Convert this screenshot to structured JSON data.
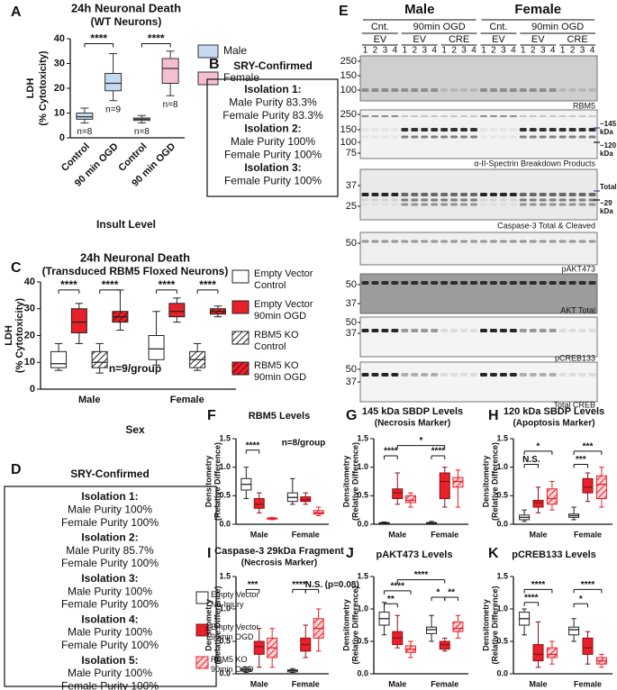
{
  "chart_data": [
    {
      "type": "box",
      "letter": "A",
      "title": "24h Neuronal Death",
      "subtitle": "(WT Neurons)",
      "ylabel": [
        "LDH",
        "(% Cytotoxicity)"
      ],
      "xlabel": "Insult Level",
      "categories": [
        "Control",
        "90 min OGD",
        "Control",
        "90 min OGD"
      ],
      "series": [
        {
          "name": "Male",
          "color": "#c6d9ef",
          "edge": "#333333",
          "boxes": [
            {
              "min": 6,
              "q1": 7.5,
              "median": 8.5,
              "q3": 10,
              "max": 12
            },
            {
              "min": 15,
              "q1": 19,
              "median": 22,
              "q3": 26,
              "max": 34
            },
            null,
            null
          ]
        },
        {
          "name": "Female",
          "color": "#f6bfd0",
          "edge": "#333333",
          "boxes": [
            null,
            null,
            {
              "min": 6,
              "q1": 7,
              "median": 7.5,
              "q3": 8,
              "max": 9
            },
            {
              "min": 17,
              "q1": 22,
              "median": 28,
              "q3": 32,
              "max": 35
            }
          ]
        }
      ],
      "box_labels": [
        "n=8",
        "n=9",
        "n=8",
        "n=8"
      ],
      "annotations": [
        "****",
        "****"
      ],
      "ylim": [
        0,
        40
      ],
      "yticks": [
        0,
        10,
        20,
        30,
        40
      ]
    },
    {
      "type": "box",
      "letter": "C",
      "title": "24h Neuronal Death",
      "subtitle": "(Transduced RBM5 Floxed Neurons)",
      "ylabel": [
        "LDH",
        "(% Cytotoxicity)"
      ],
      "xlabel": "Sex",
      "categories": [
        "Male",
        "Female"
      ],
      "category_colors": [
        "#2e6db4",
        "#e0457b"
      ],
      "series": [
        {
          "name": "Empty Vector Control",
          "color": "#ffffff",
          "edge": "#222222",
          "boxes": [
            {
              "min": 7,
              "q1": 8,
              "median": 9.5,
              "q3": 14,
              "max": 17
            },
            {
              "min": 9,
              "q1": 11,
              "median": 15,
              "q3": 20,
              "max": 29
            }
          ]
        },
        {
          "name": "Empty Vector 90min OGD",
          "color": "#e8202a",
          "edge": "#222222",
          "boxes": [
            {
              "min": 17,
              "q1": 21,
              "median": 25,
              "q3": 30,
              "max": 32
            },
            {
              "min": 25,
              "q1": 27,
              "median": 29,
              "q3": 32,
              "max": 34
            }
          ]
        },
        {
          "name": "RBM5 KO Control",
          "color": "#ffffff",
          "hatch": "#222222",
          "edge": "#222222",
          "boxes": [
            {
              "min": 6,
              "q1": 8,
              "median": 10,
              "q3": 14,
              "max": 17
            },
            {
              "min": 7,
              "q1": 8,
              "median": 11,
              "q3": 14,
              "max": 17
            }
          ]
        },
        {
          "name": "RBM5 KO 90min OGD",
          "color": "#e8202a",
          "hatch": "#6a0000",
          "edge": "#222222",
          "boxes": [
            {
              "min": 22,
              "q1": 25,
              "median": 27,
              "q3": 29,
              "max": 37
            },
            {
              "min": 27,
              "q1": 28,
              "median": 29,
              "q3": 30,
              "max": 31
            }
          ]
        }
      ],
      "annotations": [
        "****",
        "****",
        "****",
        "****"
      ],
      "note": "n=9/group",
      "ylim": [
        0,
        40
      ],
      "yticks": [
        0,
        10,
        20,
        30,
        40
      ]
    },
    {
      "type": "box",
      "letter": "F",
      "title": "RBM5 Levels",
      "ylabel": [
        "Densitometry",
        "(Relative Difference)"
      ],
      "categories": [
        "Male",
        "Female"
      ],
      "category_colors": [
        "#2e6db4",
        "#e0457b"
      ],
      "series": [
        {
          "name": "Empty Vector No-Injury",
          "color": "#ffffff",
          "edge": "#222222",
          "boxes": [
            {
              "min": 0.45,
              "q1": 0.6,
              "median": 0.7,
              "q3": 0.8,
              "max": 1.0
            },
            {
              "min": 0.35,
              "q1": 0.4,
              "median": 0.47,
              "q3": 0.55,
              "max": 0.8
            }
          ]
        },
        {
          "name": "Empty Vector 90min OGD",
          "color": "#e8202a",
          "edge": "#8a1015",
          "boxes": [
            {
              "min": 0.2,
              "q1": 0.28,
              "median": 0.35,
              "q3": 0.45,
              "max": 0.55
            },
            {
              "min": 0.35,
              "q1": 0.4,
              "median": 0.43,
              "q3": 0.48,
              "max": 0.55
            }
          ]
        },
        {
          "name": "RBM5 KO 90min OGD",
          "color": "#fbd3d5",
          "hatch": "#e8202a",
          "edge": "#e8202a",
          "boxes": [
            {
              "min": 0.08,
              "q1": 0.09,
              "median": 0.1,
              "q3": 0.11,
              "max": 0.12
            },
            {
              "min": 0.15,
              "q1": 0.18,
              "median": 0.2,
              "q3": 0.24,
              "max": 0.3
            }
          ]
        }
      ],
      "annotations": [
        "****"
      ],
      "note": "n=8/group",
      "ylim": [
        0,
        1.5
      ],
      "yticks": [
        {
          "value": 0,
          "label": "0.0"
        },
        0.5,
        {
          "value": 1,
          "label": "1.0"
        },
        1.5
      ]
    },
    {
      "type": "box",
      "letter": "G",
      "title": "145 kDa SBDP Levels",
      "subtitle": "(Necrosis Marker)",
      "ylabel": [
        "Densitometry",
        "(Relative Difference)"
      ],
      "categories": [
        "Male",
        "Female"
      ],
      "category_colors": [
        "#2e6db4",
        "#e0457b"
      ],
      "series": [
        {
          "color": "#ffffff",
          "edge": "#222222",
          "boxes": [
            {
              "min": 0,
              "q1": 0.01,
              "median": 0.02,
              "q3": 0.03,
              "max": 0.04
            },
            {
              "min": 0,
              "q1": 0.01,
              "median": 0.02,
              "q3": 0.03,
              "max": 0.05
            }
          ]
        },
        {
          "color": "#e8202a",
          "edge": "#8a1015",
          "boxes": [
            {
              "min": 0.35,
              "q1": 0.45,
              "median": 0.55,
              "q3": 0.62,
              "max": 0.9
            },
            {
              "min": 0.3,
              "q1": 0.45,
              "median": 0.75,
              "q3": 0.9,
              "max": 1.0
            }
          ]
        },
        {
          "color": "#fbd3d5",
          "hatch": "#e8202a",
          "edge": "#e8202a",
          "boxes": [
            {
              "min": 0.3,
              "q1": 0.38,
              "median": 0.42,
              "q3": 0.5,
              "max": 0.55
            },
            {
              "min": 0.3,
              "q1": 0.65,
              "median": 0.75,
              "q3": 0.82,
              "max": 0.95
            }
          ]
        }
      ],
      "annotations": [
        "****",
        "****",
        "*"
      ],
      "ylim": [
        0,
        1.5
      ],
      "yticks": [
        {
          "value": 0,
          "label": "0.0"
        },
        0.5,
        {
          "value": 1,
          "label": "1.0"
        },
        1.5
      ]
    },
    {
      "type": "box",
      "letter": "H",
      "title": "120 kDa SBDP Levels",
      "subtitle": "(Apoptosis Marker)",
      "ylabel": [
        "Densitometry",
        "(Relative Difference)"
      ],
      "categories": [
        "Male",
        "Female"
      ],
      "category_colors": [
        "#2e6db4",
        "#e0457b"
      ],
      "series": [
        {
          "color": "#ffffff",
          "edge": "#222222",
          "boxes": [
            {
              "min": 0.05,
              "q1": 0.08,
              "median": 0.12,
              "q3": 0.16,
              "max": 0.25
            },
            {
              "min": 0.08,
              "q1": 0.12,
              "median": 0.15,
              "q3": 0.18,
              "max": 0.3
            }
          ]
        },
        {
          "color": "#e8202a",
          "edge": "#8a1015",
          "boxes": [
            {
              "min": 0.2,
              "q1": 0.3,
              "median": 0.38,
              "q3": 0.42,
              "max": 0.65
            },
            {
              "min": 0.4,
              "q1": 0.55,
              "median": 0.65,
              "q3": 0.8,
              "max": 0.9
            }
          ]
        },
        {
          "color": "#fbd3d5",
          "hatch": "#e8202a",
          "edge": "#e8202a",
          "boxes": [
            {
              "min": 0.25,
              "q1": 0.35,
              "median": 0.45,
              "q3": 0.62,
              "max": 0.75
            },
            {
              "min": 0.3,
              "q1": 0.45,
              "median": 0.7,
              "q3": 0.85,
              "max": 1.0
            }
          ]
        }
      ],
      "annotations": [
        "*",
        "N.S.",
        "***",
        "***"
      ],
      "ylim": [
        0,
        1.5
      ],
      "yticks": [
        {
          "value": 0,
          "label": "0.0"
        },
        0.5,
        {
          "value": 1,
          "label": "1.0"
        },
        1.5
      ]
    },
    {
      "type": "box",
      "letter": "I",
      "title": "Caspase-3 29kDa Fragment",
      "subtitle": "(Necrosis Marker)",
      "ylabel": [
        "Densitometry",
        "(Relative Difference)"
      ],
      "categories": [
        "Male",
        "Female"
      ],
      "category_colors": [
        "#2e6db4",
        "#e0457b"
      ],
      "series": [
        {
          "color": "#ffffff",
          "edge": "#222222",
          "boxes": [
            {
              "min": 0.02,
              "q1": 0.04,
              "median": 0.06,
              "q3": 0.08,
              "max": 0.1
            },
            {
              "min": 0.02,
              "q1": 0.03,
              "median": 0.05,
              "q3": 0.06,
              "max": 0.08
            }
          ]
        },
        {
          "color": "#e8202a",
          "edge": "#8a1015",
          "boxes": [
            {
              "min": 0.1,
              "q1": 0.3,
              "median": 0.42,
              "q3": 0.5,
              "max": 0.7
            },
            {
              "min": 0.25,
              "q1": 0.35,
              "median": 0.45,
              "q3": 0.55,
              "max": 0.75
            }
          ]
        },
        {
          "color": "#fbd3d5",
          "hatch": "#e8202a",
          "edge": "#e8202a",
          "boxes": [
            {
              "min": 0.1,
              "q1": 0.25,
              "median": 0.4,
              "q3": 0.55,
              "max": 0.7
            },
            {
              "min": 0.35,
              "q1": 0.55,
              "median": 0.7,
              "q3": 0.85,
              "max": 1.0
            }
          ]
        }
      ],
      "annotations": [
        "***",
        "****",
        "N.S.",
        "(p=0.08)"
      ],
      "ylim": [
        0,
        1.5
      ],
      "yticks": [
        {
          "value": 0,
          "label": "0.0"
        },
        0.5,
        {
          "value": 1,
          "label": "1.0"
        },
        1.5
      ]
    },
    {
      "type": "box",
      "letter": "J",
      "title": "pAKT473 Levels",
      "ylabel": [
        "Densitometry",
        "(Relative Difference)"
      ],
      "categories": [
        "Male",
        "Female"
      ],
      "category_colors": [
        "#2e6db4",
        "#e0457b"
      ],
      "series": [
        {
          "color": "#ffffff",
          "edge": "#222222",
          "boxes": [
            {
              "min": 0.6,
              "q1": 0.75,
              "median": 0.85,
              "q3": 0.95,
              "max": 1.1
            },
            {
              "min": 0.5,
              "q1": 0.62,
              "median": 0.68,
              "q3": 0.72,
              "max": 0.9
            }
          ]
        },
        {
          "color": "#e8202a",
          "edge": "#8a1015",
          "boxes": [
            {
              "min": 0.4,
              "q1": 0.45,
              "median": 0.55,
              "q3": 0.65,
              "max": 0.9
            },
            {
              "min": 0.35,
              "q1": 0.38,
              "median": 0.45,
              "q3": 0.5,
              "max": 0.55
            }
          ]
        },
        {
          "color": "#fbd3d5",
          "hatch": "#e8202a",
          "edge": "#e8202a",
          "boxes": [
            {
              "min": 0.25,
              "q1": 0.33,
              "median": 0.38,
              "q3": 0.43,
              "max": 0.5
            },
            {
              "min": 0.55,
              "q1": 0.65,
              "median": 0.7,
              "q3": 0.8,
              "max": 0.9
            }
          ]
        }
      ],
      "annotations": [
        "****",
        "**",
        "****",
        "*",
        "**"
      ],
      "ylim": [
        0,
        1.5
      ],
      "yticks": [
        {
          "value": 0,
          "label": "0.0"
        },
        0.5,
        {
          "value": 1,
          "label": "1.0"
        },
        1.5
      ]
    },
    {
      "type": "box",
      "letter": "K",
      "title": "pCREB133 Levels",
      "ylabel": [
        "Densitometry",
        "(Relative Difference)"
      ],
      "categories": [
        "Male",
        "Female"
      ],
      "category_colors": [
        "#2e6db4",
        "#e0457b"
      ],
      "series": [
        {
          "color": "#ffffff",
          "edge": "#222222",
          "boxes": [
            {
              "min": 0.6,
              "q1": 0.75,
              "median": 0.85,
              "q3": 0.95,
              "max": 1.0
            },
            {
              "min": 0.5,
              "q1": 0.6,
              "median": 0.68,
              "q3": 0.72,
              "max": 0.85
            }
          ]
        },
        {
          "color": "#e8202a",
          "edge": "#8a1015",
          "boxes": [
            {
              "min": 0.1,
              "q1": 0.2,
              "median": 0.3,
              "q3": 0.45,
              "max": 0.8
            },
            {
              "min": 0.15,
              "q1": 0.3,
              "median": 0.4,
              "q3": 0.55,
              "max": 0.65
            }
          ]
        },
        {
          "color": "#fbd3d5",
          "hatch": "#e8202a",
          "edge": "#e8202a",
          "boxes": [
            {
              "min": 0.15,
              "q1": 0.25,
              "median": 0.3,
              "q3": 0.4,
              "max": 0.5
            },
            {
              "min": 0.1,
              "q1": 0.15,
              "median": 0.2,
              "q3": 0.25,
              "max": 0.3
            }
          ]
        }
      ],
      "annotations": [
        "****",
        "****",
        "*",
        "****"
      ],
      "ylim": [
        0,
        1.5
      ],
      "yticks": [
        {
          "value": 0,
          "label": "0.0"
        },
        0.5,
        {
          "value": 1,
          "label": "1.0"
        },
        1.5
      ]
    }
  ],
  "sry_b": {
    "letter": "B",
    "title": "SRY-Confirmed",
    "isolations": [
      {
        "label": "Isolation 1:",
        "lines": [
          "Male Purity 83.3%",
          "Female Purity 83.3%"
        ]
      },
      {
        "label": "Isolation 2:",
        "lines": [
          "Male Purity 100%",
          "Female Purity 100%"
        ]
      },
      {
        "label": "Isolation 3:",
        "lines": [
          "Female Purity 100%"
        ]
      }
    ]
  },
  "sry_d": {
    "letter": "D",
    "title": "SRY-Confirmed",
    "isolations": [
      {
        "label": "Isolation 1:",
        "lines": [
          "Male Purity 100%",
          "Female Purity 100%"
        ]
      },
      {
        "label": "Isolation 2:",
        "lines": [
          "Male Purity 85.7%",
          "Female Purity 100%"
        ]
      },
      {
        "label": "Isolation 3:",
        "lines": [
          "Male Purity 100%",
          "Female Purity 100%"
        ]
      },
      {
        "label": "Isolation 4:",
        "lines": [
          "Male Purity 100%",
          "Female Purity 100%"
        ]
      },
      {
        "label": "Isolation 5:",
        "lines": [
          "Male Purity 100%",
          "Female Purity 100%"
        ]
      }
    ]
  },
  "blot": {
    "letter": "E",
    "sexes": [
      "Male",
      "Female"
    ],
    "sex_colors": [
      "#2e6db4",
      "#e0457b"
    ],
    "conditions": [
      "Cnt.",
      "90min OGD",
      "Cnt.",
      "90min OGD"
    ],
    "vectors": [
      "EV",
      "EV",
      "CRE",
      "EV",
      "EV",
      "CRE"
    ],
    "lanes": [
      "1",
      "2",
      "3",
      "4",
      "1",
      "2",
      "3",
      "4",
      "1",
      "2",
      "3",
      "4",
      "1",
      "2",
      "3",
      "4",
      "1",
      "2",
      "3",
      "4",
      "1",
      "2",
      "3",
      "4"
    ],
    "strips": [
      {
        "markers": [
          "250",
          "150",
          "100"
        ],
        "label": "RBM5"
      },
      {
        "markers": [
          "250",
          "150",
          "100",
          "75"
        ],
        "label": "α-II-Spectrin Breakdown Products",
        "side_labels": [
          "~145 kDa",
          "~120 kDa"
        ],
        "side_label_colors": [
          "#4a3aa0",
          "#111111"
        ]
      },
      {
        "markers": [
          "37",
          "25"
        ],
        "label": "Caspase-3 Total & Cleaved",
        "side_labels": [
          "Total",
          "~29 kDa"
        ],
        "side_label_colors": [
          "#4a3aa0",
          "#111111"
        ]
      },
      {
        "markers": [
          "50"
        ],
        "label": "pAKT473"
      },
      {
        "markers": [
          "50",
          "37"
        ],
        "label": "AKT Total"
      },
      {
        "markers": [
          "50",
          "37"
        ],
        "label": "pCREB133"
      },
      {
        "markers": [
          "50",
          "37"
        ],
        "label": "Total CREB"
      }
    ]
  }
}
